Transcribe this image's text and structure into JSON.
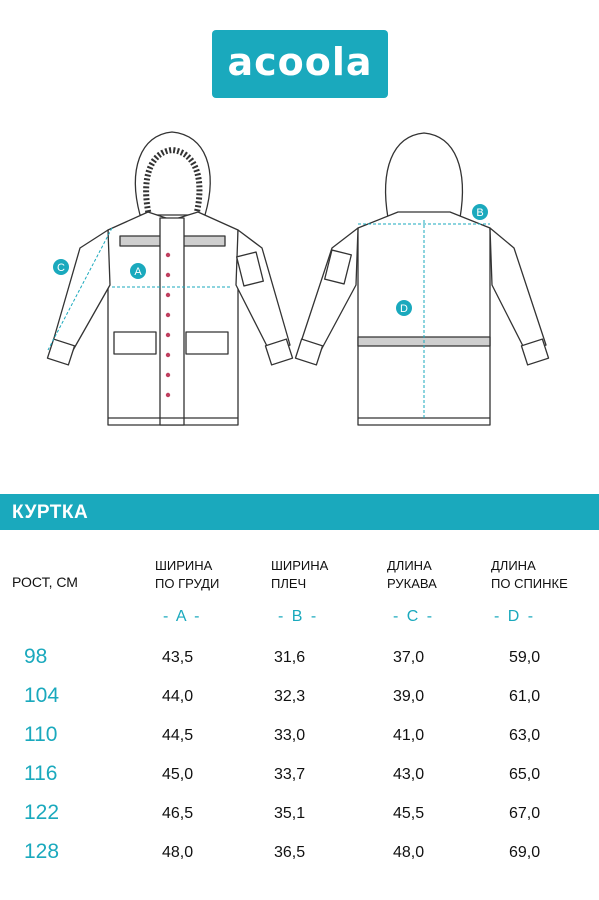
{
  "logo": {
    "text": "acoola",
    "color": "#1aa9bd"
  },
  "markers": [
    "A",
    "B",
    "C",
    "D"
  ],
  "title": "КУРТКА",
  "table": {
    "row_header": "РОСТ, СМ",
    "columns": [
      {
        "line1": "ШИРИНА",
        "line2": "ПО ГРУДИ",
        "letter": "- A -"
      },
      {
        "line1": "ШИРИНА",
        "line2": "ПЛЕЧ",
        "letter": "- B -"
      },
      {
        "line1": "ДЛИНА",
        "line2": "РУКАВА",
        "letter": "- C -"
      },
      {
        "line1": "ДЛИНА",
        "line2": "ПО СПИНКЕ",
        "letter": "- D -"
      }
    ],
    "rows": [
      {
        "size": "98",
        "a": "43,5",
        "b": "31,6",
        "c": "37,0",
        "d": "59,0"
      },
      {
        "size": "104",
        "a": "44,0",
        "b": "32,3",
        "c": "39,0",
        "d": "61,0"
      },
      {
        "size": "110",
        "a": "44,5",
        "b": "33,0",
        "c": "41,0",
        "d": "63,0"
      },
      {
        "size": "116",
        "a": "45,0",
        "b": "33,7",
        "c": "43,0",
        "d": "65,0"
      },
      {
        "size": "122",
        "a": "46,5",
        "b": "35,1",
        "c": "45,5",
        "d": "67,0"
      },
      {
        "size": "128",
        "a": "48,0",
        "b": "36,5",
        "c": "48,0",
        "d": "69,0"
      }
    ]
  }
}
